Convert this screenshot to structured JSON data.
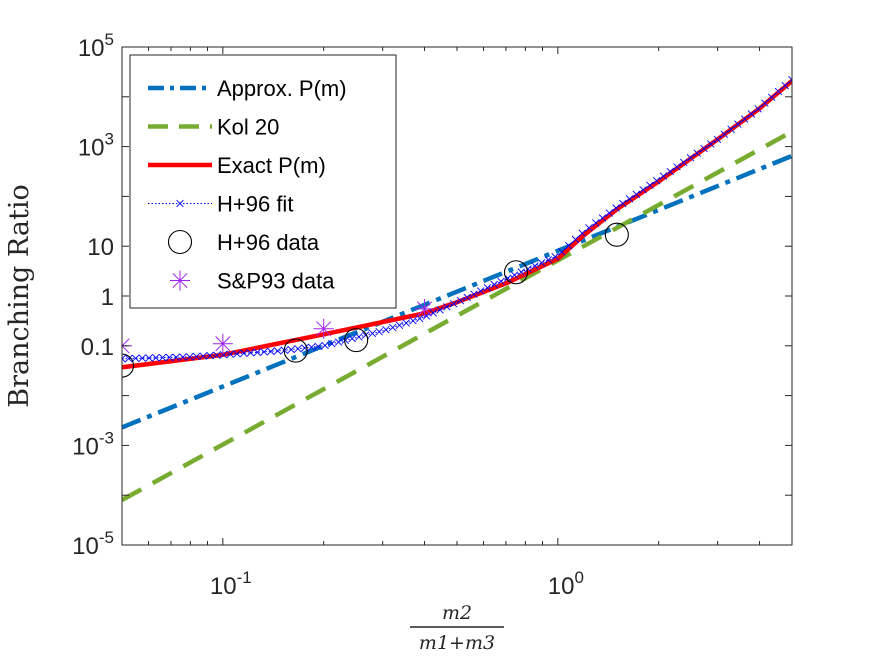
{
  "chart_data": {
    "type": "line",
    "xscale": "log",
    "yscale": "log",
    "xlim": [
      0.05,
      5
    ],
    "ylim": [
      1e-05,
      100000
    ],
    "ylabel": "Branching Ratio",
    "xlabel": {
      "numerator": "m2",
      "denominator": "m1+m3"
    },
    "xticks": [
      {
        "value": 0.1,
        "base": "10",
        "exp": "-1"
      },
      {
        "value": 1,
        "base": "10",
        "exp": "0"
      }
    ],
    "yticks": [
      {
        "value": 1e-05,
        "base": "10",
        "exp": "-5",
        "plain": ""
      },
      {
        "value": 0.001,
        "base": "10",
        "exp": "-3",
        "plain": ""
      },
      {
        "value": 0.1,
        "base": "",
        "exp": "",
        "plain": "0.1"
      },
      {
        "value": 1,
        "base": "",
        "exp": "",
        "plain": "1"
      },
      {
        "value": 10,
        "base": "",
        "exp": "",
        "plain": "10"
      },
      {
        "value": 1000,
        "base": "10",
        "exp": "3",
        "plain": ""
      },
      {
        "value": 100000,
        "base": "10",
        "exp": "5",
        "plain": ""
      }
    ],
    "grid": false,
    "legend_position": "top-left",
    "series": [
      {
        "name": "Approx. P(m)",
        "color": "#0072BD",
        "style": "dashdot",
        "x": [
          0.05,
          5
        ],
        "y": [
          0.0023,
          650
        ]
      },
      {
        "name": "Kol 20",
        "color": "#77AC30",
        "style": "dashed",
        "x": [
          0.05,
          5
        ],
        "y": [
          8e-05,
          2000
        ]
      },
      {
        "name": "Exact P(m)",
        "color": "#FF0000",
        "style": "solid",
        "x": [
          0.05,
          0.1,
          0.2,
          0.3,
          0.4,
          0.5,
          0.7,
          1.0,
          1.2,
          1.5,
          2.0,
          3.0,
          4.0,
          5.0
        ],
        "y": [
          0.037,
          0.066,
          0.17,
          0.3,
          0.45,
          0.75,
          1.8,
          5.6,
          17,
          55,
          200,
          1400,
          5800,
          21000
        ]
      },
      {
        "name": "H+96 fit",
        "color": "#0000FF",
        "style": "dotted-x",
        "x": [
          0.05,
          0.06,
          0.08,
          0.1,
          0.15,
          0.2,
          0.3,
          0.4,
          0.5,
          0.7,
          1.0,
          1.2,
          1.5,
          2.0,
          3.0,
          4.0,
          5.0
        ],
        "y": [
          0.055,
          0.057,
          0.06,
          0.066,
          0.08,
          0.1,
          0.2,
          0.38,
          0.75,
          2.2,
          6.5,
          20,
          60,
          220,
          1400,
          6000,
          22000
        ]
      },
      {
        "name": "H+96 data",
        "color": "#000000",
        "style": "circle",
        "x": [
          0.05,
          0.165,
          0.25,
          0.75,
          1.5
        ],
        "y": [
          0.04,
          0.08,
          0.13,
          3.0,
          17
        ]
      },
      {
        "name": "S&P93 data",
        "color": "#A020F0",
        "style": "asterisk",
        "x": [
          0.05,
          0.1,
          0.2,
          0.4
        ],
        "y": [
          0.1,
          0.11,
          0.22,
          0.55
        ]
      }
    ]
  }
}
